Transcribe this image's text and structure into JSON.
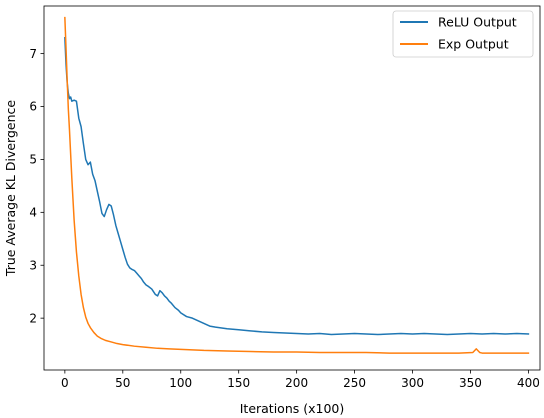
{
  "chart_data": {
    "type": "line",
    "xlabel": "Iterations (x100)",
    "ylabel": "True Average KL Divergence",
    "xlim": [
      -18,
      410
    ],
    "ylim": [
      1.02,
      7.9
    ],
    "xticks": [
      0,
      50,
      100,
      150,
      200,
      250,
      300,
      350,
      400
    ],
    "yticks": [
      2,
      3,
      4,
      5,
      6,
      7
    ],
    "grid": false,
    "legend_position": "top-right",
    "series": [
      {
        "name": "ReLU Output",
        "color": "#1f77b4",
        "x": [
          0,
          1,
          2,
          3,
          4,
          5,
          6,
          8,
          10,
          12,
          14,
          16,
          18,
          20,
          22,
          24,
          26,
          28,
          30,
          32,
          34,
          36,
          38,
          40,
          42,
          44,
          46,
          48,
          50,
          52,
          54,
          56,
          58,
          60,
          62,
          64,
          66,
          68,
          70,
          72,
          75,
          78,
          80,
          82,
          84,
          86,
          88,
          90,
          92,
          95,
          98,
          100,
          105,
          110,
          115,
          120,
          125,
          130,
          140,
          150,
          160,
          170,
          180,
          190,
          200,
          210,
          220,
          230,
          240,
          250,
          260,
          270,
          280,
          290,
          300,
          310,
          320,
          330,
          340,
          350,
          360,
          370,
          380,
          390,
          400
        ],
        "values": [
          7.3,
          6.8,
          6.45,
          6.25,
          6.15,
          6.18,
          6.1,
          6.12,
          6.1,
          5.78,
          5.62,
          5.3,
          5.0,
          4.9,
          4.95,
          4.72,
          4.6,
          4.4,
          4.2,
          3.98,
          3.92,
          4.05,
          4.15,
          4.12,
          3.95,
          3.75,
          3.6,
          3.45,
          3.3,
          3.15,
          3.02,
          2.95,
          2.92,
          2.9,
          2.85,
          2.8,
          2.75,
          2.68,
          2.63,
          2.6,
          2.55,
          2.45,
          2.42,
          2.52,
          2.48,
          2.42,
          2.38,
          2.32,
          2.28,
          2.2,
          2.15,
          2.1,
          2.03,
          2.0,
          1.95,
          1.9,
          1.85,
          1.83,
          1.8,
          1.78,
          1.76,
          1.74,
          1.73,
          1.72,
          1.71,
          1.7,
          1.71,
          1.69,
          1.7,
          1.71,
          1.7,
          1.69,
          1.7,
          1.71,
          1.7,
          1.71,
          1.7,
          1.69,
          1.7,
          1.71,
          1.7,
          1.71,
          1.7,
          1.71,
          1.7
        ]
      },
      {
        "name": "Exp Output",
        "color": "#ff7f0e",
        "x": [
          0,
          1,
          2,
          3,
          4,
          5,
          6,
          7,
          8,
          9,
          10,
          12,
          14,
          16,
          18,
          20,
          22,
          25,
          28,
          31,
          35,
          40,
          45,
          50,
          60,
          70,
          80,
          90,
          100,
          120,
          140,
          160,
          180,
          200,
          220,
          240,
          260,
          280,
          300,
          320,
          340,
          352,
          355,
          358,
          360,
          380,
          400
        ],
        "values": [
          7.68,
          7.1,
          6.5,
          5.95,
          5.55,
          5.1,
          4.65,
          4.25,
          3.85,
          3.55,
          3.25,
          2.8,
          2.45,
          2.2,
          2.02,
          1.9,
          1.82,
          1.73,
          1.66,
          1.62,
          1.58,
          1.55,
          1.52,
          1.5,
          1.47,
          1.45,
          1.43,
          1.42,
          1.41,
          1.39,
          1.38,
          1.37,
          1.36,
          1.36,
          1.35,
          1.35,
          1.35,
          1.34,
          1.34,
          1.34,
          1.34,
          1.35,
          1.42,
          1.35,
          1.34,
          1.34,
          1.34
        ]
      }
    ]
  }
}
